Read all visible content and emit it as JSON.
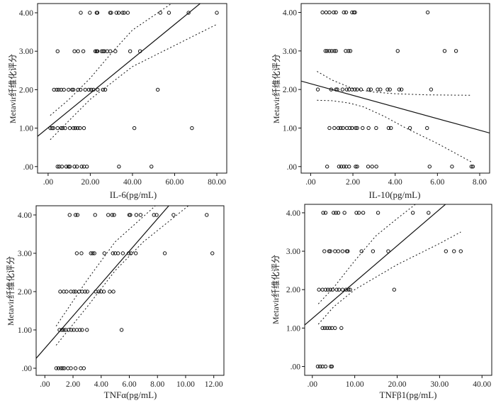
{
  "chart_data": [
    {
      "type": "scatter",
      "xlabel": "IL-6(pg/mL)",
      "ylabel": "Metavir纤维化评分",
      "xlim": [
        -5,
        84.7
      ],
      "ylim": [
        -0.17,
        4.24
      ],
      "xticks": [
        0,
        20,
        40,
        60,
        80
      ],
      "xtick_labels": [
        ".00",
        "20.00",
        "40.00",
        "60.00",
        "80.00"
      ],
      "yticks": [
        0,
        1,
        2,
        3,
        4
      ],
      "ytick_labels": [
        ".00",
        "1.00",
        "2.00",
        "3.00",
        "4.00"
      ],
      "grid": false,
      "points": {
        "4": [
          15.5,
          19.8,
          23,
          23.4,
          29.4,
          29.9,
          32.4,
          33.5,
          35.3,
          36.1,
          37.8,
          53.2,
          57.3,
          66.6,
          80
        ],
        "3": [
          4.5,
          12.5,
          14.2,
          16.7,
          22.4,
          23,
          23.4,
          25.4,
          26.1,
          26.7,
          28,
          29.5,
          31.9,
          38.9,
          43.6
        ],
        "2": [
          2.8,
          4.1,
          5,
          6.2,
          7.5,
          9.7,
          11.4,
          12,
          14.2,
          15.4,
          17.6,
          19.3,
          20.4,
          21.5,
          23.5,
          26,
          27.1,
          52
        ],
        "1": [
          1.1,
          1.9,
          2.5,
          4.5,
          6.2,
          6.9,
          8.1,
          10.3,
          12,
          12.9,
          14,
          15.1,
          17,
          40.9,
          68.2
        ],
        "0": [
          4.5,
          5.3,
          6.6,
          8.6,
          9.7,
          10.3,
          12.5,
          13.7,
          15.9,
          17,
          18.4,
          33.6,
          49
        ]
      },
      "fit_line": {
        "intercept": 1.01,
        "slope": 0.0448
      },
      "ci_upper": [
        [
          1,
          1.33
        ],
        [
          10,
          1.75
        ],
        [
          20,
          2.3
        ],
        [
          30,
          2.95
        ],
        [
          40,
          3.55
        ],
        [
          58.5,
          4.24
        ]
      ],
      "ci_lower": [
        [
          1,
          0.7
        ],
        [
          10,
          1.2
        ],
        [
          20,
          1.75
        ],
        [
          40,
          2.6
        ],
        [
          60,
          3.15
        ],
        [
          80,
          3.7
        ]
      ]
    },
    {
      "type": "scatter",
      "xlabel": "IL-10(pg/mL)",
      "ylabel": "Metavir纤维化评分",
      "xlim": [
        -0.45,
        8.47
      ],
      "ylim": [
        -0.17,
        4.23
      ],
      "xticks": [
        0,
        2,
        4,
        6,
        8
      ],
      "xtick_labels": [
        ".00",
        "2.00",
        "4.00",
        "6.00",
        "8.00"
      ],
      "yticks": [
        0,
        1,
        2,
        3,
        4
      ],
      "ytick_labels": [
        ".00",
        "1.00",
        "2.00",
        "3.00",
        "4.00"
      ],
      "grid": false,
      "points": {
        "4": [
          0.56,
          0.73,
          0.89,
          1.09,
          1.2,
          1.57,
          1.68,
          1.96,
          2.05,
          2.1,
          5.54
        ],
        "3": [
          0.7,
          0.78,
          0.89,
          1.0,
          1.12,
          1.2,
          1.66,
          1.79,
          1.88,
          4.12,
          6.34,
          6.88
        ],
        "2": [
          0.34,
          0.97,
          1.2,
          1.26,
          1.51,
          1.71,
          1.82,
          1.96,
          2.09,
          2.2,
          2.38,
          2.74,
          2.85,
          3.17,
          3.3,
          3.64,
          3.75,
          4.19,
          4.3,
          5.7
        ],
        "1": [
          0.89,
          1.12,
          1.31,
          1.42,
          1.53,
          1.71,
          1.85,
          1.96,
          2.13,
          2.2,
          2.46,
          2.74,
          3.1,
          3.69,
          3.8,
          4.7,
          5.51
        ],
        "0": [
          0.78,
          1.34,
          1.45,
          1.57,
          1.68,
          1.82,
          2.13,
          2.2,
          2.72,
          2.91,
          3.11,
          5.63,
          6.69,
          7.61,
          7.68
        ]
      },
      "fit_line": {
        "intercept": 2.15,
        "slope": -0.151
      },
      "ci_upper": [
        [
          0.3,
          2.47
        ],
        [
          1,
          2.25
        ],
        [
          2,
          2.02
        ],
        [
          3,
          1.93
        ],
        [
          4,
          1.89
        ],
        [
          5.5,
          1.86
        ],
        [
          7.6,
          1.85
        ]
      ],
      "ci_lower": [
        [
          0.3,
          1.72
        ],
        [
          1,
          1.71
        ],
        [
          1.8,
          1.65
        ],
        [
          2.5,
          1.55
        ],
        [
          3.5,
          1.3
        ],
        [
          4.5,
          1.0
        ],
        [
          6,
          0.6
        ],
        [
          7.6,
          0.12
        ]
      ]
    },
    {
      "type": "scatter",
      "xlabel": "TNFα(pg/mL)",
      "ylabel": "Metavir纤维化评分",
      "xlim": [
        -0.62,
        12.72
      ],
      "ylim": [
        -0.185,
        4.24
      ],
      "xticks": [
        0,
        2,
        4,
        6,
        8,
        10,
        12
      ],
      "xtick_labels": [
        ".00",
        "2.00",
        "4.00",
        "6.00",
        "8.00",
        "10.00",
        "12.00"
      ],
      "yticks": [
        0,
        1,
        2,
        3,
        4
      ],
      "ytick_labels": [
        ".00",
        "1.00",
        "2.00",
        "3.00",
        "4.00"
      ],
      "grid": false,
      "points": {
        "4": [
          1.76,
          2.18,
          2.32,
          3.57,
          4.5,
          4.78,
          4.92,
          6.0,
          6.07,
          6.5,
          6.8,
          7.75,
          7.94,
          9.14,
          11.5
        ],
        "3": [
          2.27,
          2.6,
          3.27,
          3.4,
          3.52,
          4.23,
          4.83,
          5.0,
          5.2,
          5.54,
          5.96,
          6.12,
          6.46,
          8.52,
          11.9
        ],
        "2": [
          1.09,
          1.34,
          1.54,
          1.85,
          2.05,
          2.18,
          2.43,
          2.65,
          2.85,
          3.02,
          3.61,
          3.83,
          4.0,
          4.19,
          4.61,
          4.87
        ],
        "1": [
          1.04,
          1.21,
          1.34,
          1.48,
          1.68,
          1.88,
          2.05,
          2.27,
          2.48,
          2.65,
          2.99,
          5.45
        ],
        "0": [
          0.81,
          0.97,
          1.14,
          1.26,
          1.38,
          1.64,
          1.85,
          2.18,
          2.55,
          2.77
        ]
      },
      "fit_line": {
        "intercept": 0.52,
        "slope": 0.4225
      },
      "ci_upper": [
        [
          0.8,
          1.1
        ],
        [
          3,
          2.3
        ],
        [
          5,
          3.3
        ],
        [
          7.85,
          4.24
        ]
      ],
      "ci_lower": [
        [
          0.8,
          0.6
        ],
        [
          3,
          1.6
        ],
        [
          5,
          2.55
        ],
        [
          7,
          3.3
        ],
        [
          10.2,
          4.24
        ]
      ]
    },
    {
      "type": "scatter",
      "xlabel": "TNFβ1(pg/mL)",
      "ylabel": "Metavir纤维化评分",
      "xlim": [
        -1.8,
        42.3
      ],
      "ylim": [
        -0.23,
        4.22
      ],
      "xticks": [
        0,
        10,
        20,
        30,
        40
      ],
      "xtick_labels": [
        ".00",
        "10.00",
        "20.00",
        "30.00",
        "40.00"
      ],
      "yticks": [
        0,
        1,
        2,
        3,
        4
      ],
      "ytick_labels": [
        ".00",
        "1.00",
        "2.00",
        "3.00",
        "4.00"
      ],
      "grid": false,
      "points": {
        "4": [
          2.56,
          3.12,
          5.01,
          5.57,
          6.13,
          7.58,
          10.4,
          11.0,
          12.0,
          15.5,
          23.7,
          27.4
        ],
        "3": [
          2.84,
          3.96,
          4.23,
          5.35,
          6.13,
          7.13,
          8.13,
          8.36,
          11.6,
          14.3,
          17.9,
          31.5,
          33.4,
          35.0
        ],
        "2": [
          1.56,
          2.4,
          3.12,
          3.68,
          4.23,
          4.79,
          5.74,
          6.3,
          7.13,
          7.97,
          8.52,
          8.91,
          19.3
        ],
        "1": [
          2.4,
          2.95,
          3.51,
          4.07,
          4.62,
          5.35,
          6.85
        ],
        "0": [
          1.28,
          1.84,
          2.4,
          3.12,
          4.35,
          4.62
        ]
      },
      "fit_line": {
        "intercept": 1.25,
        "slope": 0.0946
      },
      "ci_upper": [
        [
          1.4,
          1.63
        ],
        [
          5,
          2.05
        ],
        [
          10,
          2.75
        ],
        [
          15,
          3.4
        ],
        [
          20,
          3.85
        ],
        [
          24.3,
          4.22
        ]
      ],
      "ci_lower": [
        [
          1.4,
          1.1
        ],
        [
          5,
          1.55
        ],
        [
          10,
          2.0
        ],
        [
          20,
          2.65
        ],
        [
          30,
          3.2
        ],
        [
          35,
          3.5
        ]
      ]
    }
  ]
}
